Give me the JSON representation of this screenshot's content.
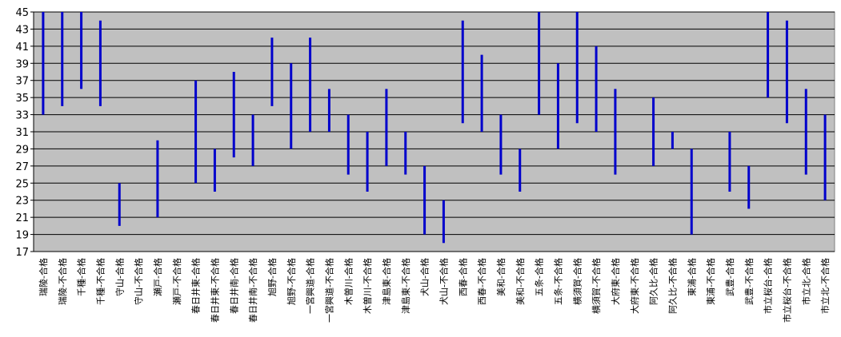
{
  "chart_data": {
    "type": "range",
    "categories": [
      "瑞陵-合格",
      "瑞陵-不合格",
      "千種-合格",
      "千種-不合格",
      "守山-合格",
      "守山-不合格",
      "瀬戸-合格",
      "瀬戸-不合格",
      "春日井東-合格",
      "春日井東-不合格",
      "春日井南-合格",
      "春日井南-不合格",
      "旭野-合格",
      "旭野-不合格",
      "一宮興道-合格",
      "一宮興道-不合格",
      "木曽川-合格",
      "木曽川-不合格",
      "津島東-合格",
      "津島東-不合格",
      "犬山-合格",
      "犬山-不合格",
      "西春-合格",
      "西春-不合格",
      "美和-合格",
      "美和-不合格",
      "五条-合格",
      "五条-不合格",
      "横須賀-合格",
      "横須賀-不合格",
      "大府東-合格",
      "大府東-不合格",
      "阿久比-合格",
      "阿久比-不合格",
      "東浦-合格",
      "東浦-不合格",
      "武豊-合格",
      "武豊-不合格",
      "市立桜台-合格",
      "市立桜台-不合格",
      "市立北-合格",
      "市立北-不合格"
    ],
    "low": [
      33,
      34,
      36,
      34,
      20,
      null,
      21,
      null,
      25,
      24,
      28,
      27,
      34,
      29,
      31,
      31,
      26,
      24,
      27,
      26,
      19,
      18,
      32,
      31,
      26,
      24,
      33,
      29,
      32,
      31,
      26,
      null,
      27,
      29,
      19,
      null,
      24,
      22,
      35,
      32,
      26,
      23
    ],
    "high": [
      45,
      45,
      45,
      44,
      25,
      null,
      30,
      null,
      37,
      29,
      38,
      33,
      42,
      39,
      42,
      36,
      33,
      31,
      36,
      31,
      27,
      23,
      44,
      40,
      33,
      29,
      45,
      39,
      45,
      41,
      36,
      null,
      35,
      31,
      29,
      null,
      31,
      27,
      45,
      44,
      36,
      33
    ],
    "color": "#0000cc",
    "ylim": [
      17,
      45
    ],
    "yticks": [
      17,
      19,
      21,
      23,
      25,
      27,
      29,
      31,
      33,
      35,
      37,
      39,
      41,
      43,
      45
    ],
    "grid": true
  }
}
